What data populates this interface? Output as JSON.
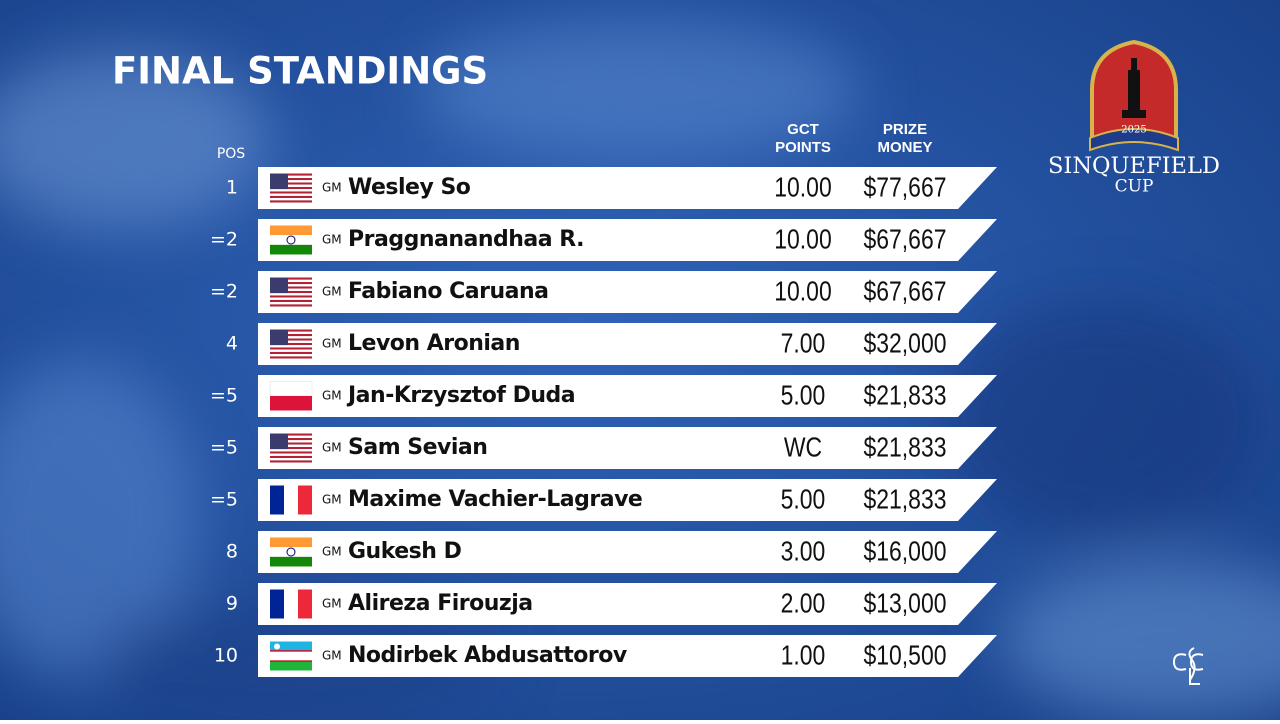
{
  "header": {
    "title": "FINAL STANDINGS",
    "pos_label": "POS",
    "points_label": [
      "GCT",
      "POINTS"
    ],
    "prize_label": [
      "PRIZE",
      "MONEY"
    ]
  },
  "logo": {
    "year": "2025",
    "name": "SINQUEFIELD",
    "subname": "CUP"
  },
  "table": {
    "rows": [
      {
        "pos": "1",
        "title": "GM",
        "name": "Wesley So",
        "points": "10.00",
        "prize": "$77,667"
      },
      {
        "pos": "=2",
        "title": "GM",
        "name": "Praggnanandhaa R.",
        "points": "10.00",
        "prize": "$67,667"
      },
      {
        "pos": "=2",
        "title": "GM",
        "name": "Fabiano Caruana",
        "points": "10.00",
        "prize": "$67,667"
      },
      {
        "pos": "4",
        "title": "GM",
        "name": "Levon Aronian",
        "points": "7.00",
        "prize": "$32,000"
      },
      {
        "pos": "=5",
        "title": "GM",
        "name": "Jan-Krzysztof Duda",
        "points": "5.00",
        "prize": "$21,833"
      },
      {
        "pos": "=5",
        "title": "GM",
        "name": "Sam Sevian",
        "points": "WC",
        "prize": "$21,833"
      },
      {
        "pos": "=5",
        "title": "GM",
        "name": "Maxime Vachier-Lagrave",
        "points": "5.00",
        "prize": "$21,833"
      },
      {
        "pos": "8",
        "title": "GM",
        "name": "Gukesh D",
        "points": "3.00",
        "prize": "$16,000"
      },
      {
        "pos": "9",
        "title": "GM",
        "name": "Alireza Firouzja",
        "points": "2.00",
        "prize": "$13,000"
      },
      {
        "pos": "10",
        "title": "GM",
        "name": "Nodirbek Abdusattorov",
        "points": "1.00",
        "prize": "$10,500"
      }
    ]
  }
}
